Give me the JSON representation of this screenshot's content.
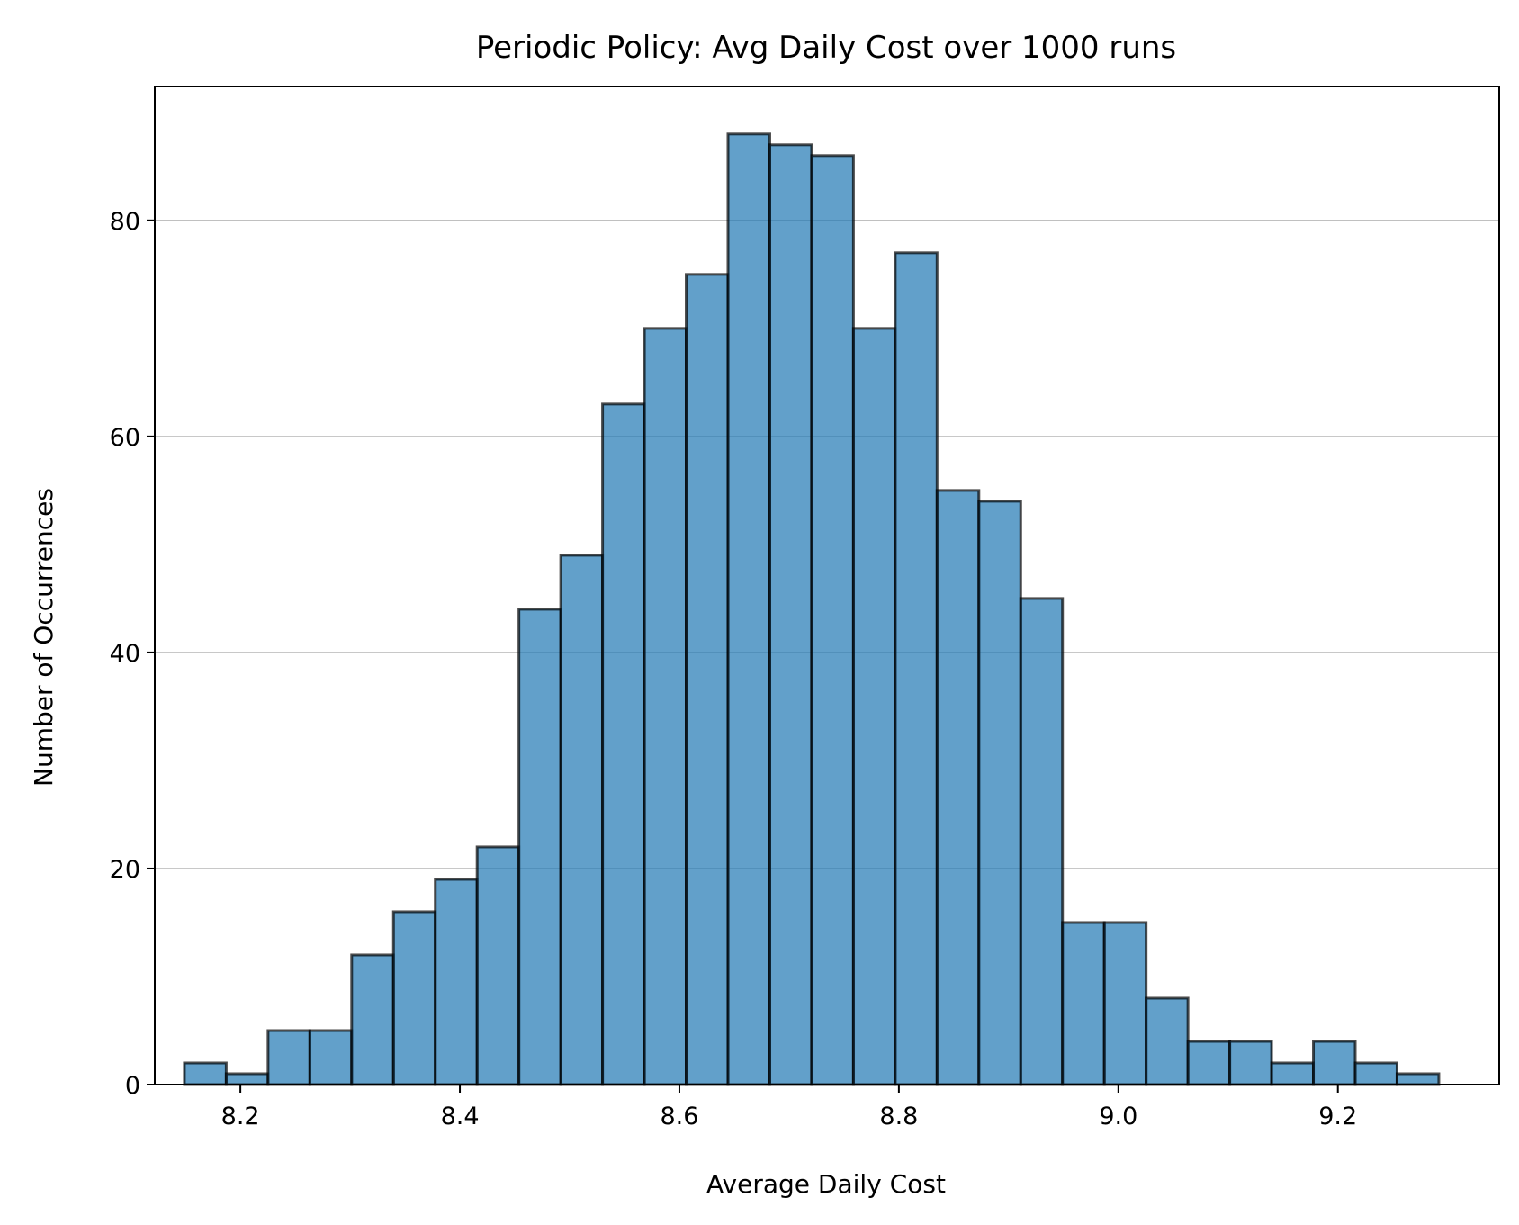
{
  "chart_data": {
    "type": "bar",
    "title": "Periodic Policy: Avg Daily Cost over 1000 runs",
    "xlabel": "Average Daily Cost",
    "ylabel": "Number of Occurrences",
    "xlim": [
      8.122,
      9.347
    ],
    "ylim": [
      0,
      92.4
    ],
    "x_ticks": [
      8.2,
      8.4,
      8.6,
      8.8,
      9.0,
      9.2
    ],
    "x_tick_labels": [
      "8.2",
      "8.4",
      "8.6",
      "8.8",
      "9.0",
      "9.2"
    ],
    "y_ticks": [
      0,
      20,
      40,
      60,
      80
    ],
    "y_tick_labels": [
      "0",
      "20",
      "40",
      "60",
      "80"
    ],
    "grid": "y-axis only",
    "legend": "none",
    "bin_edges": [
      8.149,
      8.1871,
      8.2252,
      8.2633,
      8.3014,
      8.3395,
      8.3776,
      8.4157,
      8.4538,
      8.4919,
      8.53,
      8.5681,
      8.6062,
      8.6443,
      8.6824,
      8.7205,
      8.7586,
      8.7967,
      8.8348,
      8.8729,
      8.911,
      8.9491,
      8.9872,
      9.0253,
      9.0634,
      9.1015,
      9.1396,
      9.1777,
      9.2158,
      9.2539,
      9.292
    ],
    "counts": [
      2,
      1,
      5,
      5,
      12,
      16,
      19,
      22,
      44,
      49,
      63,
      70,
      75,
      88,
      87,
      86,
      70,
      77,
      55,
      54,
      45,
      15,
      15,
      8,
      4,
      4,
      2,
      4,
      2,
      1
    ],
    "colors": {
      "bar_fill": "#1f77b4",
      "bar_fill_opacity": 0.7,
      "bar_edge": "#000000",
      "grid": "#c0c0c0"
    }
  }
}
